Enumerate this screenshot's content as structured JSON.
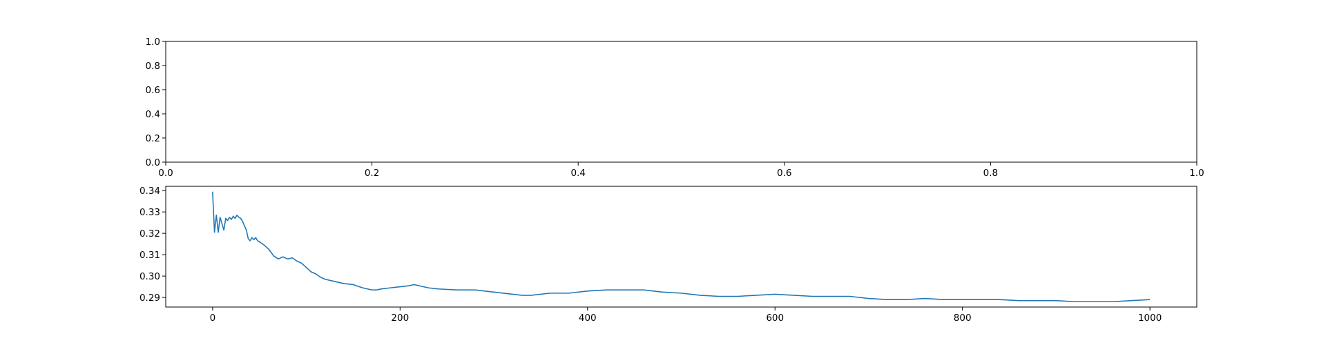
{
  "chart_data": [
    {
      "type": "line",
      "title": "",
      "xlabel": "",
      "ylabel": "",
      "xlim": [
        0.0,
        1.0
      ],
      "ylim": [
        0.0,
        1.0
      ],
      "x_ticks": [
        "0.0",
        "0.2",
        "0.4",
        "0.6",
        "0.8",
        "1.0"
      ],
      "y_ticks": [
        "0.0",
        "0.2",
        "0.4",
        "0.6",
        "0.8",
        "1.0"
      ],
      "grid": false,
      "legend": "none",
      "series": []
    },
    {
      "type": "line",
      "title": "",
      "xlabel": "",
      "ylabel": "",
      "xlim": [
        -50,
        1050
      ],
      "ylim": [
        0.2855,
        0.342
      ],
      "x_ticks": [
        "0",
        "200",
        "400",
        "600",
        "800",
        "1000"
      ],
      "y_ticks": [
        "0.29",
        "0.30",
        "0.31",
        "0.32",
        "0.33",
        "0.34"
      ],
      "grid": false,
      "legend": "none",
      "line_color": "#1f77b4",
      "series": [
        {
          "x": [
            0,
            2,
            4,
            6,
            8,
            10,
            12,
            14,
            16,
            18,
            20,
            22,
            24,
            26,
            28,
            30,
            32,
            34,
            36,
            38,
            40,
            42,
            44,
            46,
            48,
            50,
            55,
            60,
            65,
            70,
            75,
            80,
            85,
            90,
            95,
            100,
            105,
            110,
            115,
            120,
            130,
            140,
            150,
            160,
            170,
            175,
            180,
            190,
            200,
            210,
            215,
            220,
            230,
            240,
            260,
            280,
            300,
            320,
            330,
            340,
            360,
            380,
            400,
            420,
            440,
            450,
            460,
            480,
            500,
            520,
            540,
            560,
            580,
            600,
            620,
            640,
            660,
            680,
            700,
            720,
            740,
            760,
            780,
            800,
            820,
            840,
            860,
            880,
            900,
            920,
            940,
            960,
            980,
            1000
          ],
          "y": [
            0.3395,
            0.3205,
            0.3285,
            0.3205,
            0.3275,
            0.3245,
            0.3215,
            0.327,
            0.326,
            0.3275,
            0.3265,
            0.328,
            0.327,
            0.3285,
            0.3275,
            0.327,
            0.3255,
            0.3235,
            0.3215,
            0.3175,
            0.3165,
            0.318,
            0.317,
            0.318,
            0.3165,
            0.316,
            0.3145,
            0.3125,
            0.3095,
            0.308,
            0.309,
            0.308,
            0.3085,
            0.307,
            0.306,
            0.304,
            0.302,
            0.301,
            0.2995,
            0.2985,
            0.2975,
            0.2965,
            0.296,
            0.2945,
            0.2935,
            0.2935,
            0.294,
            0.2945,
            0.295,
            0.2955,
            0.296,
            0.2955,
            0.2945,
            0.294,
            0.2935,
            0.2935,
            0.2925,
            0.2915,
            0.291,
            0.291,
            0.292,
            0.292,
            0.293,
            0.2935,
            0.2935,
            0.2935,
            0.2935,
            0.2925,
            0.292,
            0.291,
            0.2905,
            0.2905,
            0.291,
            0.2915,
            0.291,
            0.2905,
            0.2905,
            0.2905,
            0.2895,
            0.289,
            0.289,
            0.2895,
            0.289,
            0.289,
            0.289,
            0.289,
            0.2885,
            0.2885,
            0.2885,
            0.288,
            0.288,
            0.288,
            0.2885,
            0.289
          ]
        }
      ]
    }
  ]
}
